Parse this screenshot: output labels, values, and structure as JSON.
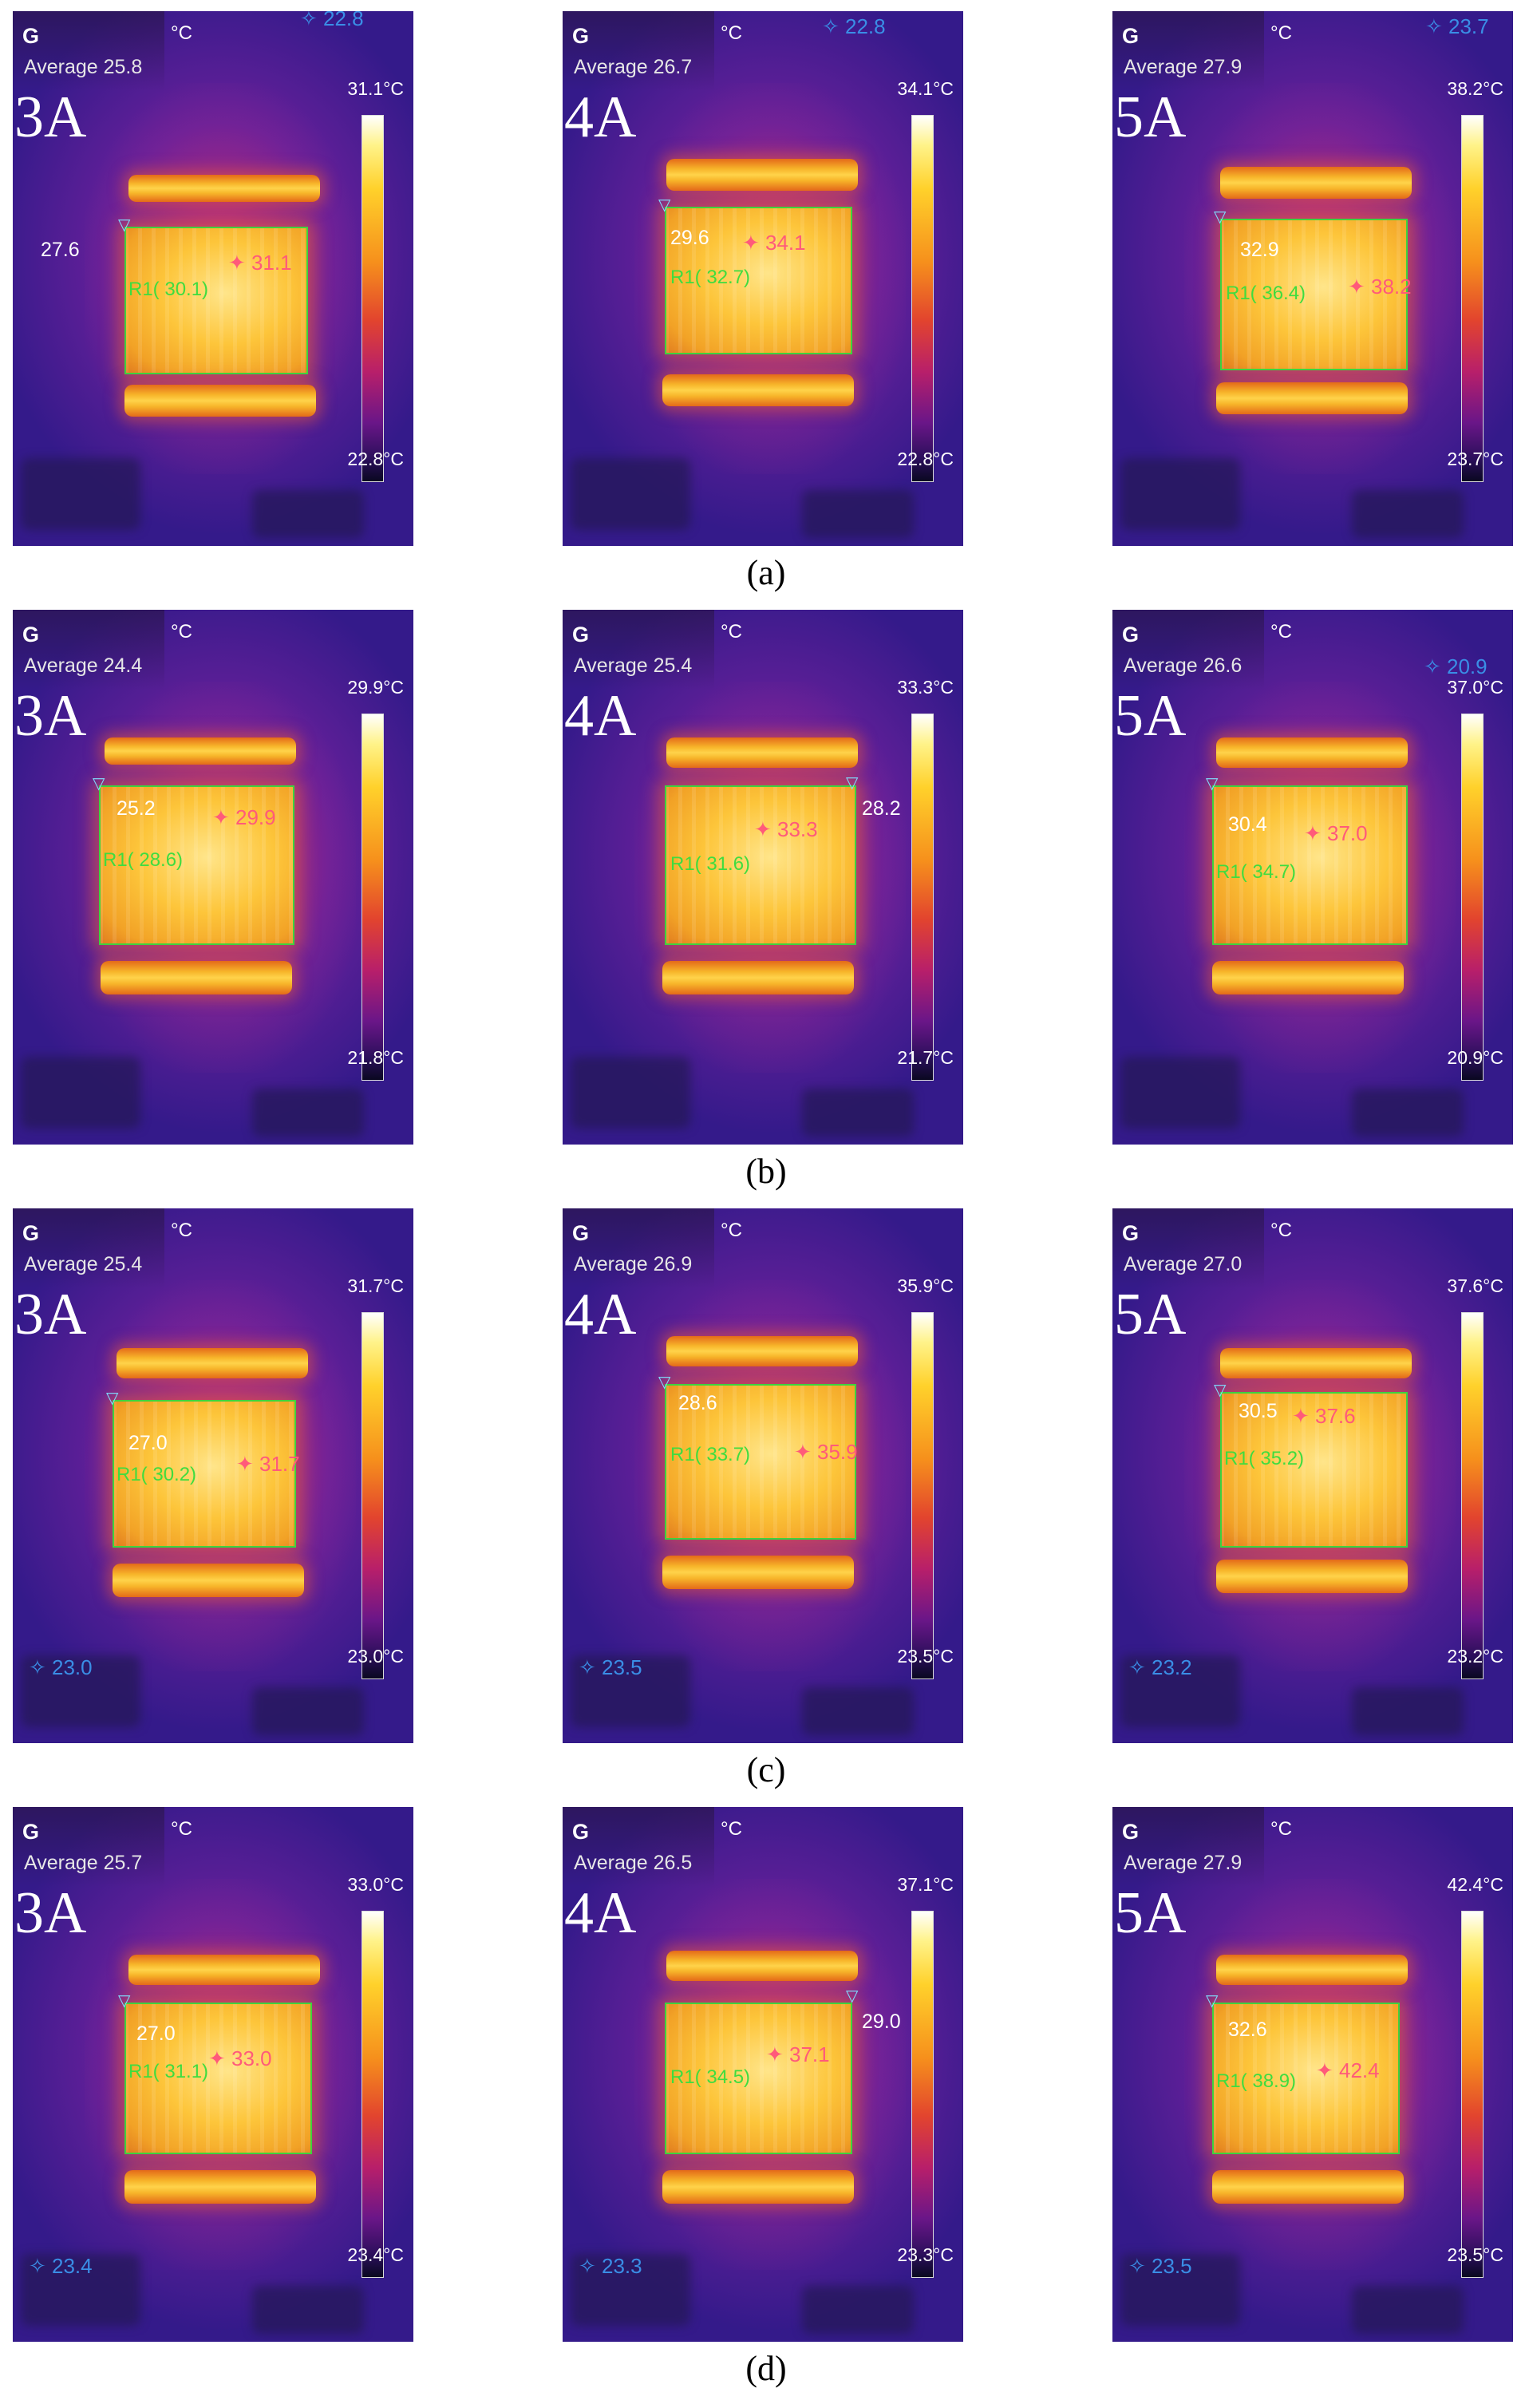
{
  "figure": {
    "rows": [
      {
        "caption": "(a)",
        "panels": [
          {
            "mode": "G",
            "unit": "°C",
            "average": "Average 25.8",
            "current": "3A",
            "scale_max": "31.1°C",
            "scale_min": "22.8°C",
            "min_point": "27.6",
            "max_point": "31.1",
            "roi_label": "R1( 30.1)",
            "cold_point": "22.8",
            "cold_pos": "top"
          },
          {
            "mode": "G",
            "unit": "°C",
            "average": "Average 26.7",
            "current": "4A",
            "scale_max": "34.1°C",
            "scale_min": "22.8°C",
            "min_point": "29.6",
            "max_point": "34.1",
            "roi_label": "R1( 32.7)",
            "cold_point": "22.8",
            "cold_pos": "top"
          },
          {
            "mode": "G",
            "unit": "°C",
            "average": "Average 27.9",
            "current": "5A",
            "scale_max": "38.2°C",
            "scale_min": "23.7°C",
            "min_point": "32.9",
            "max_point": "38.2",
            "roi_label": "R1( 36.4)",
            "cold_point": "23.7",
            "cold_pos": "top"
          }
        ]
      },
      {
        "caption": "(b)",
        "panels": [
          {
            "mode": "G",
            "unit": "°C",
            "average": "Average 24.4",
            "current": "3A",
            "scale_max": "29.9°C",
            "scale_min": "21.8°C",
            "min_point": "25.2",
            "max_point": "29.9",
            "roi_label": "R1( 28.6)",
            "cold_point": "",
            "cold_pos": "top"
          },
          {
            "mode": "G",
            "unit": "°C",
            "average": "Average 25.4",
            "current": "4A",
            "scale_max": "33.3°C",
            "scale_min": "21.7°C",
            "min_point": "28.2",
            "max_point": "33.3",
            "roi_label": "R1( 31.6)",
            "cold_point": "",
            "cold_pos": "top"
          },
          {
            "mode": "G",
            "unit": "°C",
            "average": "Average 26.6",
            "current": "5A",
            "scale_max": "37.0°C",
            "scale_min": "20.9°C",
            "min_point": "30.4",
            "max_point": "37.0",
            "roi_label": "R1( 34.7)",
            "cold_point": "20.9",
            "cold_pos": "top"
          }
        ]
      },
      {
        "caption": "(c)",
        "panels": [
          {
            "mode": "G",
            "unit": "°C",
            "average": "Average 25.4",
            "current": "3A",
            "scale_max": "31.7°C",
            "scale_min": "23.0°C",
            "min_point": "27.0",
            "max_point": "31.7",
            "roi_label": "R1( 30.2)",
            "cold_point": "23.0",
            "cold_pos": "bottom"
          },
          {
            "mode": "G",
            "unit": "°C",
            "average": "Average 26.9",
            "current": "4A",
            "scale_max": "35.9°C",
            "scale_min": "23.5°C",
            "min_point": "28.6",
            "max_point": "35.9",
            "roi_label": "R1( 33.7)",
            "cold_point": "23.5",
            "cold_pos": "bottom"
          },
          {
            "mode": "G",
            "unit": "°C",
            "average": "Average 27.0",
            "current": "5A",
            "scale_max": "37.6°C",
            "scale_min": "23.2°C",
            "min_point": "30.5",
            "max_point": "37.6",
            "roi_label": "R1( 35.2)",
            "cold_point": "23.2",
            "cold_pos": "bottom"
          }
        ]
      },
      {
        "caption": "(d)",
        "panels": [
          {
            "mode": "G",
            "unit": "°C",
            "average": "Average 25.7",
            "current": "3A",
            "scale_max": "33.0°C",
            "scale_min": "23.4°C",
            "min_point": "27.0",
            "max_point": "33.0",
            "roi_label": "R1( 31.1)",
            "cold_point": "23.4",
            "cold_pos": "bottom"
          },
          {
            "mode": "G",
            "unit": "°C",
            "average": "Average 26.5",
            "current": "4A",
            "scale_max": "37.1°C",
            "scale_min": "23.3°C",
            "min_point": "29.0",
            "max_point": "37.1",
            "roi_label": "R1( 34.5)",
            "cold_point": "23.3",
            "cold_pos": "bottom"
          },
          {
            "mode": "G",
            "unit": "°C",
            "average": "Average 27.9",
            "current": "5A",
            "scale_max": "42.4°C",
            "scale_min": "23.5°C",
            "min_point": "32.6",
            "max_point": "42.4",
            "roi_label": "R1( 38.9)",
            "cold_point": "23.5",
            "cold_pos": "bottom"
          }
        ]
      }
    ]
  }
}
